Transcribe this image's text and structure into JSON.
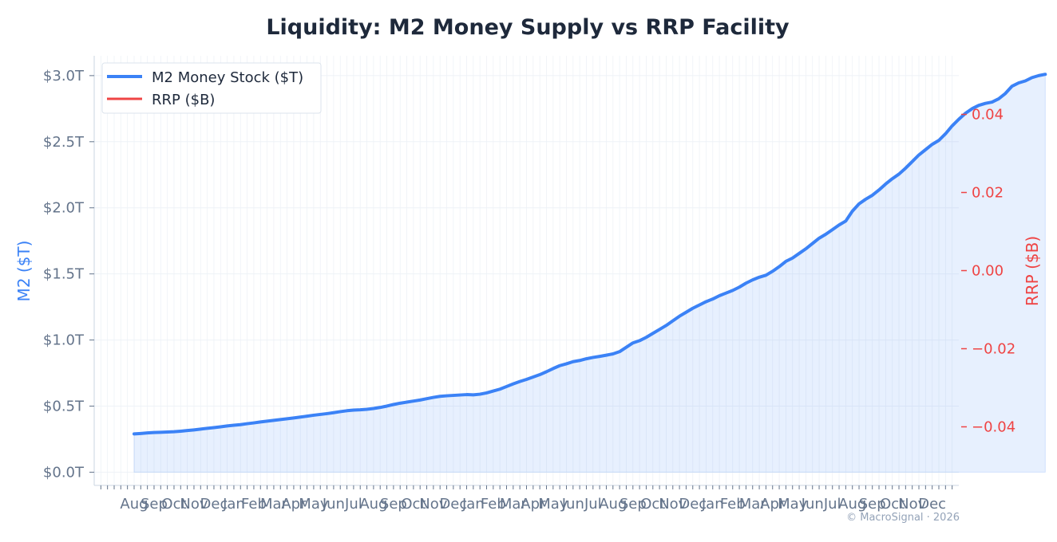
{
  "chart_data": {
    "type": "line",
    "title": "Liquidity: M2 Money Supply vs RRP Facility",
    "left_axis": {
      "label": "M2 ($T)",
      "color": "#3b82f6",
      "ylim": [
        -0.1,
        3.15
      ],
      "ticks": [
        {
          "value": 0.0,
          "label": "$0.0T"
        },
        {
          "value": 0.5,
          "label": "$0.5T"
        },
        {
          "value": 1.0,
          "label": "$1.0T"
        },
        {
          "value": 1.5,
          "label": "$1.5T"
        },
        {
          "value": 2.0,
          "label": "$2.0T"
        },
        {
          "value": 2.5,
          "label": "$2.5T"
        },
        {
          "value": 3.0,
          "label": "$3.0T"
        }
      ]
    },
    "right_axis": {
      "label": "RRP ($B)",
      "color": "#ef4444",
      "ylim": [
        -0.055,
        0.055
      ],
      "ticks": [
        {
          "value": 0.04,
          "label": "0.04"
        },
        {
          "value": 0.02,
          "label": "0.02"
        },
        {
          "value": 0.0,
          "label": "0.00"
        },
        {
          "value": -0.02,
          "label": "−0.02"
        },
        {
          "value": -0.04,
          "label": "−0.04"
        }
      ]
    },
    "x_range": [
      -6,
      124
    ],
    "x_tick_labels_note": "overlapping illegible date labels",
    "legend": {
      "position": "top-left",
      "entries": [
        {
          "name": "M2 Money Stock ($T)",
          "color": "#3b82f6"
        },
        {
          "name": "RRP ($B)",
          "color": "#ef4444"
        }
      ]
    },
    "grid": true,
    "series": [
      {
        "name": "M2 Money Stock ($T)",
        "axis": "left",
        "color": "#3b82f6",
        "fill": true,
        "values": [
          0.29,
          0.293,
          0.297,
          0.3,
          0.302,
          0.304,
          0.306,
          0.31,
          0.315,
          0.32,
          0.326,
          0.332,
          0.337,
          0.343,
          0.35,
          0.355,
          0.36,
          0.367,
          0.373,
          0.38,
          0.386,
          0.392,
          0.398,
          0.404,
          0.41,
          0.417,
          0.424,
          0.431,
          0.437,
          0.443,
          0.45,
          0.458,
          0.465,
          0.47,
          0.472,
          0.476,
          0.482,
          0.49,
          0.5,
          0.512,
          0.522,
          0.53,
          0.538,
          0.546,
          0.556,
          0.566,
          0.574,
          0.578,
          0.581,
          0.584,
          0.587,
          0.585,
          0.59,
          0.6,
          0.614,
          0.628,
          0.648,
          0.668,
          0.686,
          0.702,
          0.72,
          0.738,
          0.76,
          0.784,
          0.806,
          0.82,
          0.836,
          0.845,
          0.858,
          0.868,
          0.876,
          0.885,
          0.895,
          0.912,
          0.945,
          0.978,
          0.995,
          1.02,
          1.05,
          1.08,
          1.11,
          1.145,
          1.18,
          1.21,
          1.24,
          1.265,
          1.29,
          1.31,
          1.335,
          1.355,
          1.375,
          1.4,
          1.43,
          1.455,
          1.475,
          1.49,
          1.52,
          1.555,
          1.595,
          1.62,
          1.655,
          1.69,
          1.73,
          1.77,
          1.8,
          1.835,
          1.87,
          1.9,
          1.975,
          2.03,
          2.065,
          2.095,
          2.135,
          2.18,
          2.22,
          2.255,
          2.3,
          2.35,
          2.4,
          2.44,
          2.48,
          2.51,
          2.56,
          2.62,
          2.67,
          2.715,
          2.75,
          2.775,
          2.79,
          2.8,
          2.825,
          2.865,
          2.92,
          2.945,
          2.96,
          2.985,
          3.0,
          3.01
        ]
      },
      {
        "name": "RRP ($B)",
        "axis": "right",
        "color": "#ef4444",
        "values": []
      }
    ]
  },
  "footer": {
    "watermark": "© MacroSignal · 2026"
  }
}
